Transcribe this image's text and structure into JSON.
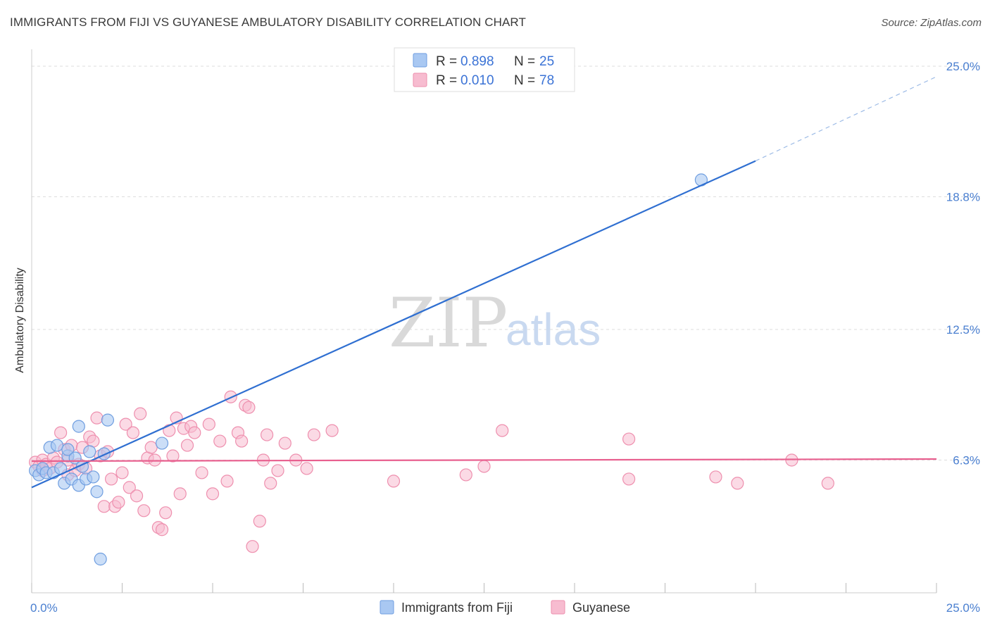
{
  "title": "IMMIGRANTS FROM FIJI VS GUYANESE AMBULATORY DISABILITY CORRELATION CHART",
  "source": "Source: ZipAtlas.com",
  "watermark": {
    "zip": "ZIP",
    "atlas": "atlas"
  },
  "colors": {
    "fiji_fill": "#a9c8f2",
    "fiji_stroke": "#6f9ee0",
    "fiji_line": "#2f6fd1",
    "guy_fill": "#f7bcd0",
    "guy_stroke": "#ee8fae",
    "guy_line": "#e8608f",
    "tick_text": "#4a7fd0",
    "grid": "#dddddd"
  },
  "legend": {
    "rows": [
      {
        "r_label": "R =",
        "r_value": "0.898",
        "n_label": "N =",
        "n_value": "25"
      },
      {
        "r_label": "R =",
        "r_value": "0.010",
        "n_label": "N =",
        "n_value": "78"
      }
    ]
  },
  "chart_data": {
    "type": "scatter",
    "ylabel": "Ambulatory Disability",
    "xlabel": "",
    "xlim": [
      0,
      25
    ],
    "ylim": [
      0,
      25.8
    ],
    "y_ticks": [
      {
        "value": 25.0,
        "label": "25.0%"
      },
      {
        "value": 18.8,
        "label": "18.8%"
      },
      {
        "value": 12.5,
        "label": "12.5%"
      },
      {
        "value": 6.3,
        "label": "6.3%"
      }
    ],
    "x_tick_labels": [
      "0.0%",
      "25.0%"
    ],
    "legend_position": "top-center",
    "grid": true,
    "series": [
      {
        "name": "Immigrants from Fiji",
        "points": [
          [
            0.1,
            5.8
          ],
          [
            0.2,
            5.6
          ],
          [
            0.3,
            5.9
          ],
          [
            0.4,
            5.7
          ],
          [
            0.5,
            6.9
          ],
          [
            0.6,
            5.7
          ],
          [
            0.7,
            7.0
          ],
          [
            0.8,
            5.9
          ],
          [
            0.9,
            5.2
          ],
          [
            1.0,
            6.5
          ],
          [
            1.0,
            6.8
          ],
          [
            1.1,
            5.4
          ],
          [
            1.2,
            6.4
          ],
          [
            1.3,
            7.9
          ],
          [
            1.3,
            5.1
          ],
          [
            1.4,
            6.0
          ],
          [
            1.5,
            5.4
          ],
          [
            1.6,
            6.7
          ],
          [
            1.7,
            5.5
          ],
          [
            1.8,
            4.8
          ],
          [
            1.9,
            1.6
          ],
          [
            2.0,
            6.6
          ],
          [
            2.1,
            8.2
          ],
          [
            3.6,
            7.1
          ],
          [
            18.5,
            19.6
          ]
        ],
        "trend": {
          "x": [
            0,
            20
          ],
          "y": [
            5.0,
            20.5
          ],
          "dashed_to": [
            25,
            24.5
          ]
        }
      },
      {
        "name": "Guyanese",
        "points": [
          [
            0.1,
            6.2
          ],
          [
            0.2,
            6.0
          ],
          [
            0.3,
            6.3
          ],
          [
            0.3,
            5.8
          ],
          [
            0.4,
            6.1
          ],
          [
            0.5,
            5.9
          ],
          [
            0.6,
            6.4
          ],
          [
            0.7,
            6.2
          ],
          [
            0.8,
            7.6
          ],
          [
            0.9,
            6.8
          ],
          [
            1.0,
            6.3
          ],
          [
            1.0,
            5.6
          ],
          [
            1.1,
            7.0
          ],
          [
            1.2,
            5.8
          ],
          [
            1.3,
            6.1
          ],
          [
            1.4,
            6.9
          ],
          [
            1.5,
            5.9
          ],
          [
            1.6,
            7.4
          ],
          [
            1.7,
            7.2
          ],
          [
            1.8,
            8.3
          ],
          [
            1.9,
            6.5
          ],
          [
            2.0,
            4.1
          ],
          [
            2.1,
            6.7
          ],
          [
            2.2,
            5.4
          ],
          [
            2.3,
            4.1
          ],
          [
            2.4,
            4.3
          ],
          [
            2.5,
            5.7
          ],
          [
            2.6,
            8.0
          ],
          [
            2.7,
            5.0
          ],
          [
            2.8,
            7.6
          ],
          [
            2.9,
            4.6
          ],
          [
            3.0,
            8.5
          ],
          [
            3.1,
            3.9
          ],
          [
            3.2,
            6.4
          ],
          [
            3.3,
            6.9
          ],
          [
            3.4,
            6.3
          ],
          [
            3.5,
            3.1
          ],
          [
            3.6,
            3.0
          ],
          [
            3.7,
            3.8
          ],
          [
            3.8,
            7.7
          ],
          [
            3.9,
            6.5
          ],
          [
            4.0,
            8.3
          ],
          [
            4.1,
            4.7
          ],
          [
            4.2,
            7.8
          ],
          [
            4.3,
            7.0
          ],
          [
            4.4,
            7.9
          ],
          [
            4.5,
            7.6
          ],
          [
            4.7,
            5.7
          ],
          [
            4.9,
            8.0
          ],
          [
            5.0,
            4.7
          ],
          [
            5.2,
            7.2
          ],
          [
            5.4,
            5.3
          ],
          [
            5.5,
            9.3
          ],
          [
            5.7,
            7.6
          ],
          [
            5.8,
            7.2
          ],
          [
            5.9,
            8.9
          ],
          [
            6.0,
            8.8
          ],
          [
            6.1,
            2.2
          ],
          [
            6.3,
            3.4
          ],
          [
            6.4,
            6.3
          ],
          [
            6.5,
            7.5
          ],
          [
            6.6,
            5.2
          ],
          [
            6.8,
            5.8
          ],
          [
            7.0,
            7.1
          ],
          [
            7.3,
            6.3
          ],
          [
            7.6,
            5.9
          ],
          [
            7.8,
            7.5
          ],
          [
            8.3,
            7.7
          ],
          [
            10.0,
            5.3
          ],
          [
            12.0,
            5.6
          ],
          [
            13.0,
            7.7
          ],
          [
            16.5,
            7.3
          ],
          [
            16.5,
            5.4
          ],
          [
            18.9,
            5.5
          ],
          [
            19.5,
            5.2
          ],
          [
            21.0,
            6.3
          ],
          [
            22.0,
            5.2
          ],
          [
            12.5,
            6.0
          ]
        ],
        "trend": {
          "x": [
            0,
            25
          ],
          "y": [
            6.25,
            6.35
          ]
        }
      }
    ]
  }
}
